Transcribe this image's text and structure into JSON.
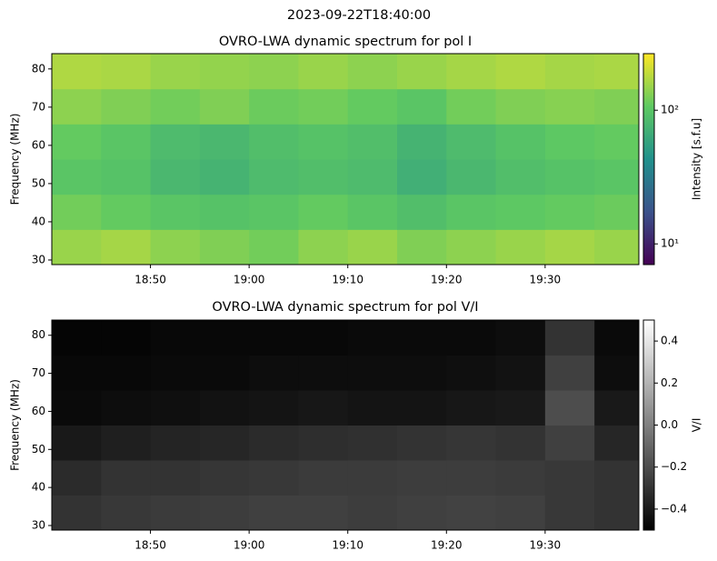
{
  "title": "2023-09-22T18:40:00",
  "chart_data": [
    {
      "type": "heatmap",
      "title": "OVRO-LWA dynamic spectrum for pol I",
      "ylabel": "Frequency (MHz)",
      "xlim": [
        1120,
        1179.5
      ],
      "xticks": [
        {
          "value": 1130,
          "label": "18:50"
        },
        {
          "value": 1140,
          "label": "19:00"
        },
        {
          "value": 1150,
          "label": "19:10"
        },
        {
          "value": 1160,
          "label": "19:20"
        },
        {
          "value": 1170,
          "label": "19:30"
        }
      ],
      "ylim": [
        28.8,
        84
      ],
      "yticks": [
        30,
        40,
        50,
        60,
        70,
        80
      ],
      "x": [
        1122.5,
        1127.5,
        1132.5,
        1137.5,
        1142.5,
        1147.5,
        1152.5,
        1157.5,
        1162.5,
        1167.5,
        1172.5,
        1177.5
      ],
      "y": [
        33.4,
        42.6,
        51.8,
        61,
        70.2,
        79.4
      ],
      "values": [
        [
          150,
          160,
          140,
          130,
          120,
          140,
          150,
          130,
          140,
          150,
          160,
          150
        ],
        [
          120,
          110,
          100,
          95,
          100,
          110,
          100,
          90,
          100,
          105,
          110,
          115
        ],
        [
          100,
          95,
          80,
          75,
          85,
          90,
          85,
          70,
          80,
          90,
          95,
          100
        ],
        [
          110,
          100,
          85,
          80,
          90,
          95,
          90,
          75,
          85,
          95,
          105,
          110
        ],
        [
          140,
          130,
          120,
          130,
          115,
          120,
          110,
          100,
          120,
          130,
          135,
          130
        ],
        [
          170,
          165,
          150,
          145,
          140,
          150,
          140,
          150,
          160,
          170,
          160,
          165
        ]
      ],
      "colormap": "viridis",
      "colorbar": {
        "label": "Intensity [s.f.u]",
        "scale": "log",
        "lim": [
          7,
          265
        ],
        "ticks": [
          {
            "value": 10,
            "label": "10¹"
          },
          {
            "value": 100,
            "label": "10²"
          }
        ]
      }
    },
    {
      "type": "heatmap",
      "title": "OVRO-LWA dynamic spectrum for pol V/I",
      "ylabel": "Frequency (MHz)",
      "xlim": [
        1120,
        1179.5
      ],
      "xticks": [
        {
          "value": 1130,
          "label": "18:50"
        },
        {
          "value": 1140,
          "label": "19:00"
        },
        {
          "value": 1150,
          "label": "19:10"
        },
        {
          "value": 1160,
          "label": "19:20"
        },
        {
          "value": 1170,
          "label": "19:30"
        }
      ],
      "ylim": [
        28.8,
        84
      ],
      "yticks": [
        30,
        40,
        50,
        60,
        70,
        80
      ],
      "x": [
        1122.5,
        1127.5,
        1132.5,
        1137.5,
        1142.5,
        1147.5,
        1152.5,
        1157.5,
        1162.5,
        1167.5,
        1172.5,
        1177.5
      ],
      "y": [
        33.4,
        42.6,
        51.8,
        61,
        70.2,
        79.4
      ],
      "values": [
        [
          -0.3,
          -0.28,
          -0.27,
          -0.26,
          -0.25,
          -0.25,
          -0.26,
          -0.25,
          -0.24,
          -0.25,
          -0.28,
          -0.3
        ],
        [
          -0.33,
          -0.3,
          -0.3,
          -0.29,
          -0.28,
          -0.27,
          -0.27,
          -0.26,
          -0.26,
          -0.27,
          -0.28,
          -0.3
        ],
        [
          -0.4,
          -0.38,
          -0.36,
          -0.35,
          -0.33,
          -0.32,
          -0.31,
          -0.3,
          -0.29,
          -0.3,
          -0.25,
          -0.35
        ],
        [
          -0.46,
          -0.45,
          -0.44,
          -0.43,
          -0.42,
          -0.41,
          -0.42,
          -0.42,
          -0.41,
          -0.4,
          -0.2,
          -0.4
        ],
        [
          -0.47,
          -0.47,
          -0.46,
          -0.46,
          -0.45,
          -0.45,
          -0.45,
          -0.45,
          -0.44,
          -0.43,
          -0.25,
          -0.45
        ],
        [
          -0.48,
          -0.48,
          -0.47,
          -0.47,
          -0.47,
          -0.47,
          -0.46,
          -0.46,
          -0.46,
          -0.45,
          -0.3,
          -0.46
        ]
      ],
      "colormap": "gray",
      "colorbar": {
        "label": "V/I",
        "scale": "linear",
        "lim": [
          -0.5,
          0.5
        ],
        "ticks": [
          {
            "value": 0.4,
            "label": "0.4"
          },
          {
            "value": 0.2,
            "label": "0.2"
          },
          {
            "value": 0,
            "label": "0.0"
          },
          {
            "value": -0.2,
            "label": "−0.2"
          },
          {
            "value": -0.4,
            "label": "−0.4"
          }
        ]
      }
    }
  ]
}
